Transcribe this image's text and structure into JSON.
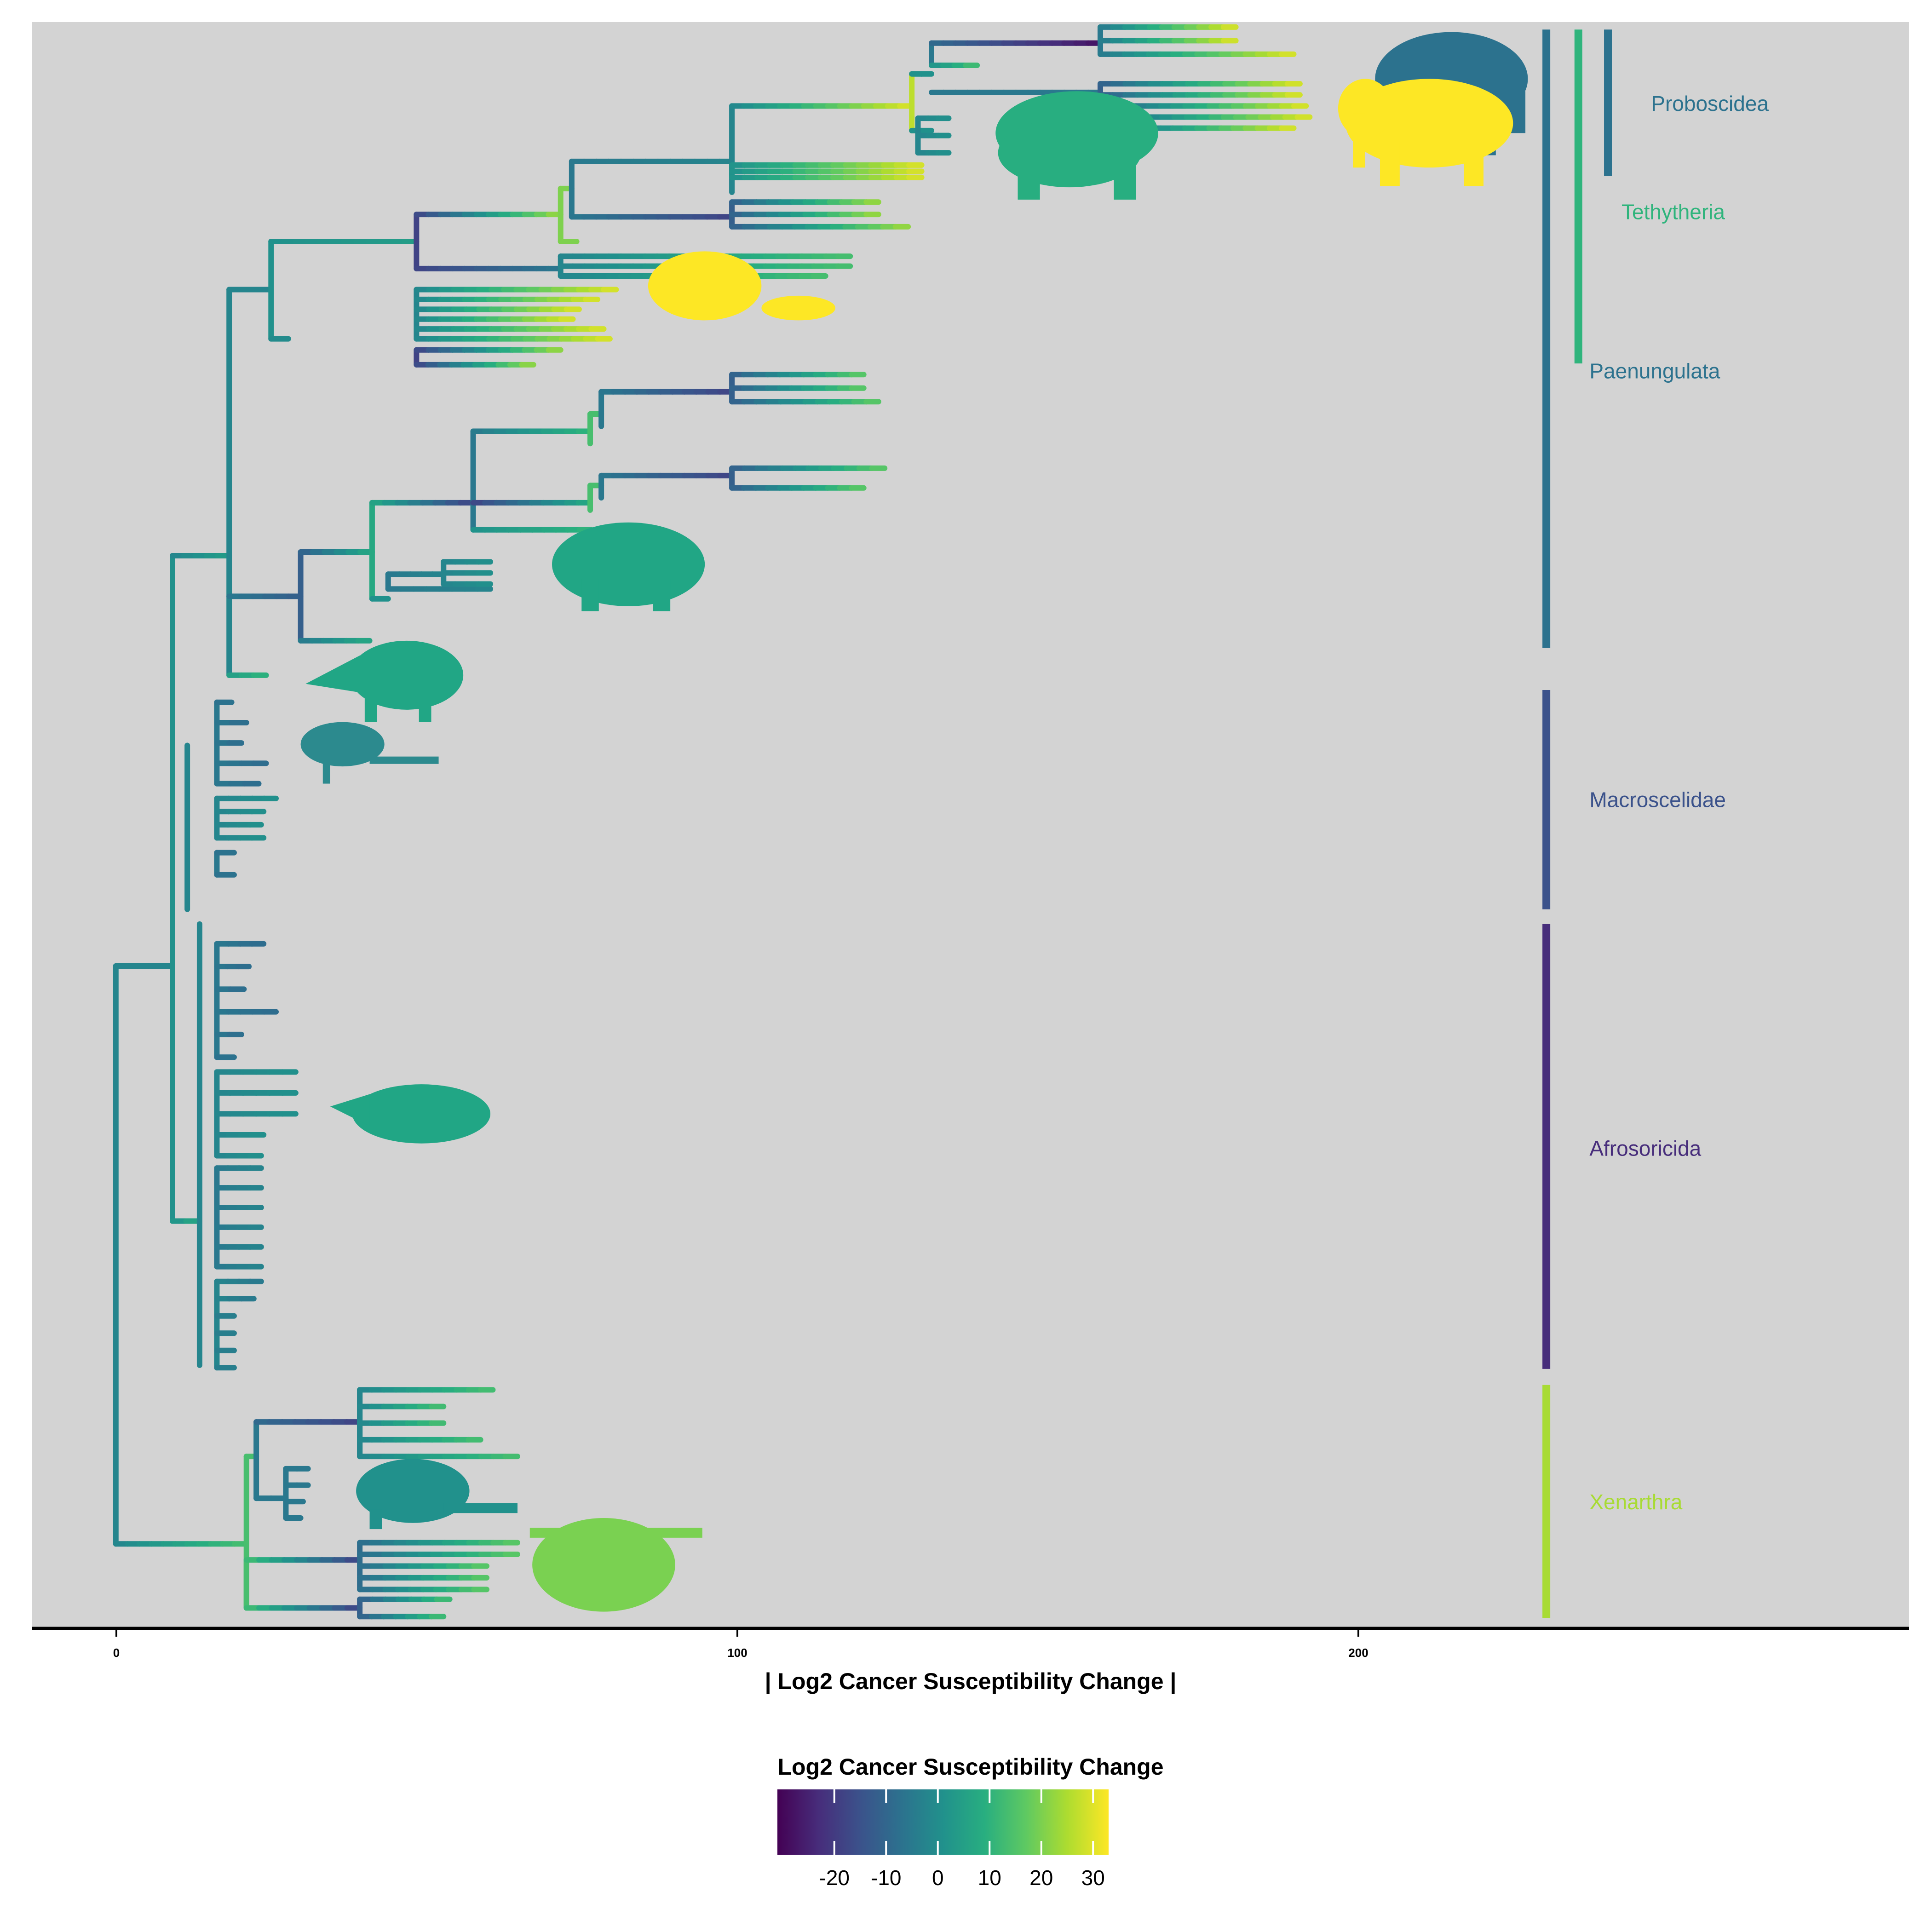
{
  "chart_data": {
    "type": "phylogenetic-tree",
    "xlabel": "| Log2 Cancer Susceptibility Change |",
    "x_ticks": [
      0,
      100,
      200
    ],
    "xlim": [
      -14,
      289
    ],
    "background": "#d3d3d3",
    "legend": {
      "title": "Log2 Cancer Susceptibility Change",
      "ticks": [
        -20,
        -10,
        0,
        10,
        20,
        30
      ],
      "tick_labels": [
        "-20",
        "-10",
        "0",
        "10",
        "20",
        "30"
      ],
      "range": [
        -31,
        33
      ],
      "placement": "bottom-center"
    },
    "colormap": [
      "#440154",
      "#472d7b",
      "#3b528b",
      "#2c728e",
      "#21918c",
      "#28ae80",
      "#5ec962",
      "#addc30",
      "#fde725"
    ],
    "clades": [
      {
        "name": "Proboscidea",
        "color": "#2c728e"
      },
      {
        "name": "Tethytheria",
        "color": "#2fb47c"
      },
      {
        "name": "Paenungulata",
        "color": "#2c728e"
      },
      {
        "name": "Macroscelidae",
        "color": "#3b528b"
      },
      {
        "name": "Afrosoricida",
        "color": "#472d7b"
      },
      {
        "name": "Xenarthra",
        "color": "#a8db34"
      }
    ],
    "silhouettes": [
      {
        "name": "mammoth-silhouette",
        "color": "#2c728e"
      },
      {
        "name": "elephant-silhouette",
        "color": "#fde725"
      },
      {
        "name": "elephant-herd-silhouette",
        "color": "#28ae80"
      },
      {
        "name": "manatee-silhouette",
        "color": "#fde725"
      },
      {
        "name": "hyrax-silhouette",
        "color": "#21a685"
      },
      {
        "name": "aardvark-silhouette",
        "color": "#21a685"
      },
      {
        "name": "elephant-shrew-silhouette",
        "color": "#2c8a8e"
      },
      {
        "name": "tenrec-silhouette",
        "color": "#21a685"
      },
      {
        "name": "armadillo-silhouette",
        "color": "#21918c"
      },
      {
        "name": "sloth-silhouette",
        "color": "#7ad151"
      }
    ]
  }
}
